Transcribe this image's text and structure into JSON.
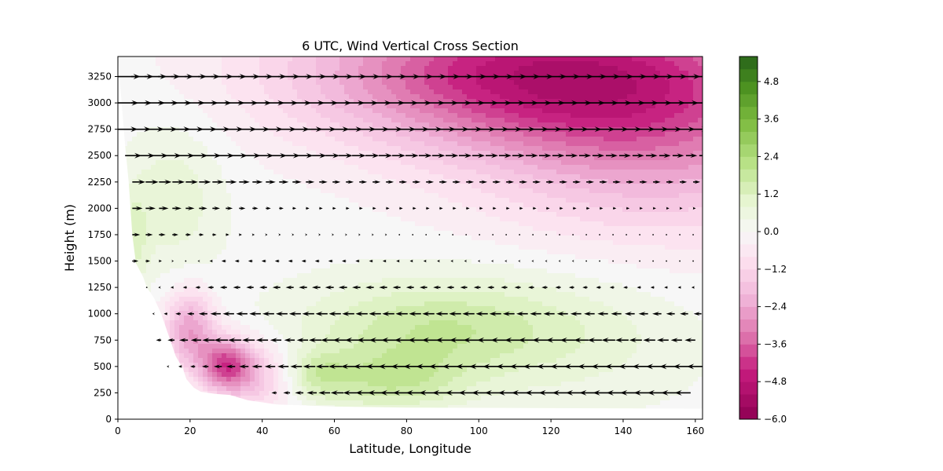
{
  "chart_data": {
    "type": "heatmap",
    "title": "6 UTC, Wind Vertical Cross Section",
    "xlabel": "Latitude, Longitude",
    "ylabel": "Height (m)",
    "xlim": [
      0,
      162
    ],
    "ylim": [
      0,
      3440
    ],
    "x_ticks": [
      0,
      20,
      40,
      60,
      80,
      100,
      120,
      140,
      160
    ],
    "y_ticks": [
      0,
      250,
      500,
      750,
      1000,
      1250,
      1500,
      1750,
      2000,
      2250,
      2500,
      2750,
      3000,
      3250
    ],
    "colorbar": {
      "colormap": "PiYG",
      "range": [
        -6.0,
        5.6
      ],
      "ticks": [
        "−6.0",
        "−4.8",
        "−3.6",
        "−2.4",
        "−1.2",
        "0.0",
        "1.2",
        "2.4",
        "3.6",
        "4.8"
      ],
      "tick_values": [
        -6.0,
        -4.8,
        -3.6,
        -2.4,
        -1.2,
        0.0,
        1.2,
        2.4,
        3.6,
        4.8
      ]
    },
    "contour_field": {
      "description_levels": "vertical wind contours",
      "regions": [
        {
          "kind": "negative",
          "x": 125,
          "y": 3300,
          "sx": 45,
          "sy": 550,
          "amp": -3.2
        },
        {
          "kind": "negative",
          "x": 150,
          "y": 2700,
          "sx": 35,
          "sy": 700,
          "amp": -2.2
        },
        {
          "kind": "negative",
          "x": 90,
          "y": 3300,
          "sx": 35,
          "sy": 450,
          "amp": -1.4
        },
        {
          "kind": "negative",
          "x": 30,
          "y": 520,
          "sx": 5,
          "sy": 170,
          "amp": -3.4
        },
        {
          "kind": "negative",
          "x": 20,
          "y": 850,
          "sx": 5,
          "sy": 260,
          "amp": -2.6
        },
        {
          "kind": "negative",
          "x": 38,
          "y": 400,
          "sx": 8,
          "sy": 250,
          "amp": -1.6
        },
        {
          "kind": "positive",
          "x": 87,
          "y": 850,
          "sx": 26,
          "sy": 350,
          "amp": 1.7
        },
        {
          "kind": "positive",
          "x": 75,
          "y": 350,
          "sx": 14,
          "sy": 200,
          "amp": 1.4
        },
        {
          "kind": "positive",
          "x": 55,
          "y": 420,
          "sx": 6,
          "sy": 160,
          "amp": 1.1
        },
        {
          "kind": "positive",
          "x": 130,
          "y": 800,
          "sx": 25,
          "sy": 500,
          "amp": 0.6
        },
        {
          "kind": "positive",
          "x": 15,
          "y": 2100,
          "sx": 10,
          "sy": 500,
          "amp": 0.9
        },
        {
          "kind": "positive",
          "x": 4,
          "y": 1700,
          "sx": 3,
          "sy": 300,
          "amp": 1.0
        }
      ]
    },
    "quiver": {
      "levels": [
        250,
        500,
        750,
        1000,
        1250,
        1500,
        1750,
        2000,
        2250,
        2500,
        2750,
        3000,
        3250
      ],
      "level_start_x": [
        44,
        14,
        12,
        10,
        8,
        4,
        4,
        4,
        4,
        2,
        0,
        0,
        0
      ],
      "level_end_x": [
        162,
        162,
        162,
        162,
        162,
        162,
        162,
        162,
        162,
        162,
        162,
        162,
        162
      ],
      "x_step": 3.7,
      "u_profile": {
        "250": [
          [
            44,
            -0.6
          ],
          [
            60,
            -1.4
          ],
          [
            80,
            -2.0
          ],
          [
            110,
            -2.2
          ],
          [
            140,
            -2.0
          ],
          [
            162,
            -1.8
          ]
        ],
        "500": [
          [
            14,
            -0.2
          ],
          [
            30,
            -1.0
          ],
          [
            60,
            -1.5
          ],
          [
            90,
            -2.3
          ],
          [
            120,
            -2.2
          ],
          [
            162,
            -1.8
          ]
        ],
        "750": [
          [
            12,
            -0.6
          ],
          [
            30,
            -1.6
          ],
          [
            50,
            -1.2
          ],
          [
            80,
            -2.4
          ],
          [
            110,
            -2.0
          ],
          [
            162,
            -1.2
          ]
        ],
        "1000": [
          [
            10,
            -0.2
          ],
          [
            30,
            -1.3
          ],
          [
            60,
            -1.4
          ],
          [
            100,
            -1.4
          ],
          [
            140,
            -1.2
          ],
          [
            162,
            -0.9
          ]
        ],
        "1250": [
          [
            8,
            -0.1
          ],
          [
            30,
            -0.8
          ],
          [
            60,
            -1.0
          ],
          [
            100,
            -0.8
          ],
          [
            140,
            -0.5
          ],
          [
            162,
            -0.3
          ]
        ],
        "1500": [
          [
            4,
            0.7
          ],
          [
            12,
            0.3
          ],
          [
            30,
            -0.5
          ],
          [
            60,
            -0.5
          ],
          [
            100,
            -0.2
          ],
          [
            162,
            0.0
          ]
        ],
        "1750": [
          [
            4,
            0.9
          ],
          [
            20,
            0.6
          ],
          [
            40,
            0.2
          ],
          [
            80,
            0.1
          ],
          [
            120,
            0.1
          ],
          [
            162,
            0.1
          ]
        ],
        "2000": [
          [
            4,
            1.2
          ],
          [
            20,
            1.0
          ],
          [
            50,
            0.4
          ],
          [
            90,
            0.4
          ],
          [
            130,
            0.4
          ],
          [
            162,
            0.3
          ]
        ],
        "2250": [
          [
            4,
            1.5
          ],
          [
            20,
            1.4
          ],
          [
            60,
            0.9
          ],
          [
            100,
            0.9
          ],
          [
            140,
            0.9
          ],
          [
            162,
            0.8
          ]
        ],
        "2500": [
          [
            2,
            1.9
          ],
          [
            30,
            1.8
          ],
          [
            80,
            1.5
          ],
          [
            120,
            1.4
          ],
          [
            162,
            1.3
          ]
        ],
        "2750": [
          [
            0,
            2.3
          ],
          [
            40,
            2.1
          ],
          [
            90,
            2.0
          ],
          [
            130,
            1.9
          ],
          [
            162,
            1.9
          ]
        ],
        "3000": [
          [
            0,
            2.4
          ],
          [
            40,
            2.3
          ],
          [
            100,
            2.3
          ],
          [
            162,
            2.3
          ]
        ],
        "3250": [
          [
            0,
            2.6
          ],
          [
            40,
            2.5
          ],
          [
            100,
            2.5
          ],
          [
            162,
            2.5
          ]
        ]
      }
    },
    "mask_lower_left": [
      [
        0,
        3440
      ],
      [
        2,
        2600
      ],
      [
        3,
        2250
      ],
      [
        4,
        1750
      ],
      [
        5,
        1480
      ],
      [
        7,
        1350
      ],
      [
        8,
        1250
      ],
      [
        10,
        1150
      ],
      [
        12,
        1000
      ],
      [
        14,
        800
      ],
      [
        16,
        600
      ],
      [
        18,
        480
      ],
      [
        19,
        380
      ],
      [
        21,
        300
      ],
      [
        23,
        260
      ],
      [
        27,
        240
      ],
      [
        31,
        230
      ],
      [
        34,
        200
      ],
      [
        36,
        180
      ],
      [
        40,
        160
      ],
      [
        44,
        140
      ],
      [
        60,
        120
      ],
      [
        80,
        110
      ],
      [
        162,
        100
      ]
    ]
  }
}
